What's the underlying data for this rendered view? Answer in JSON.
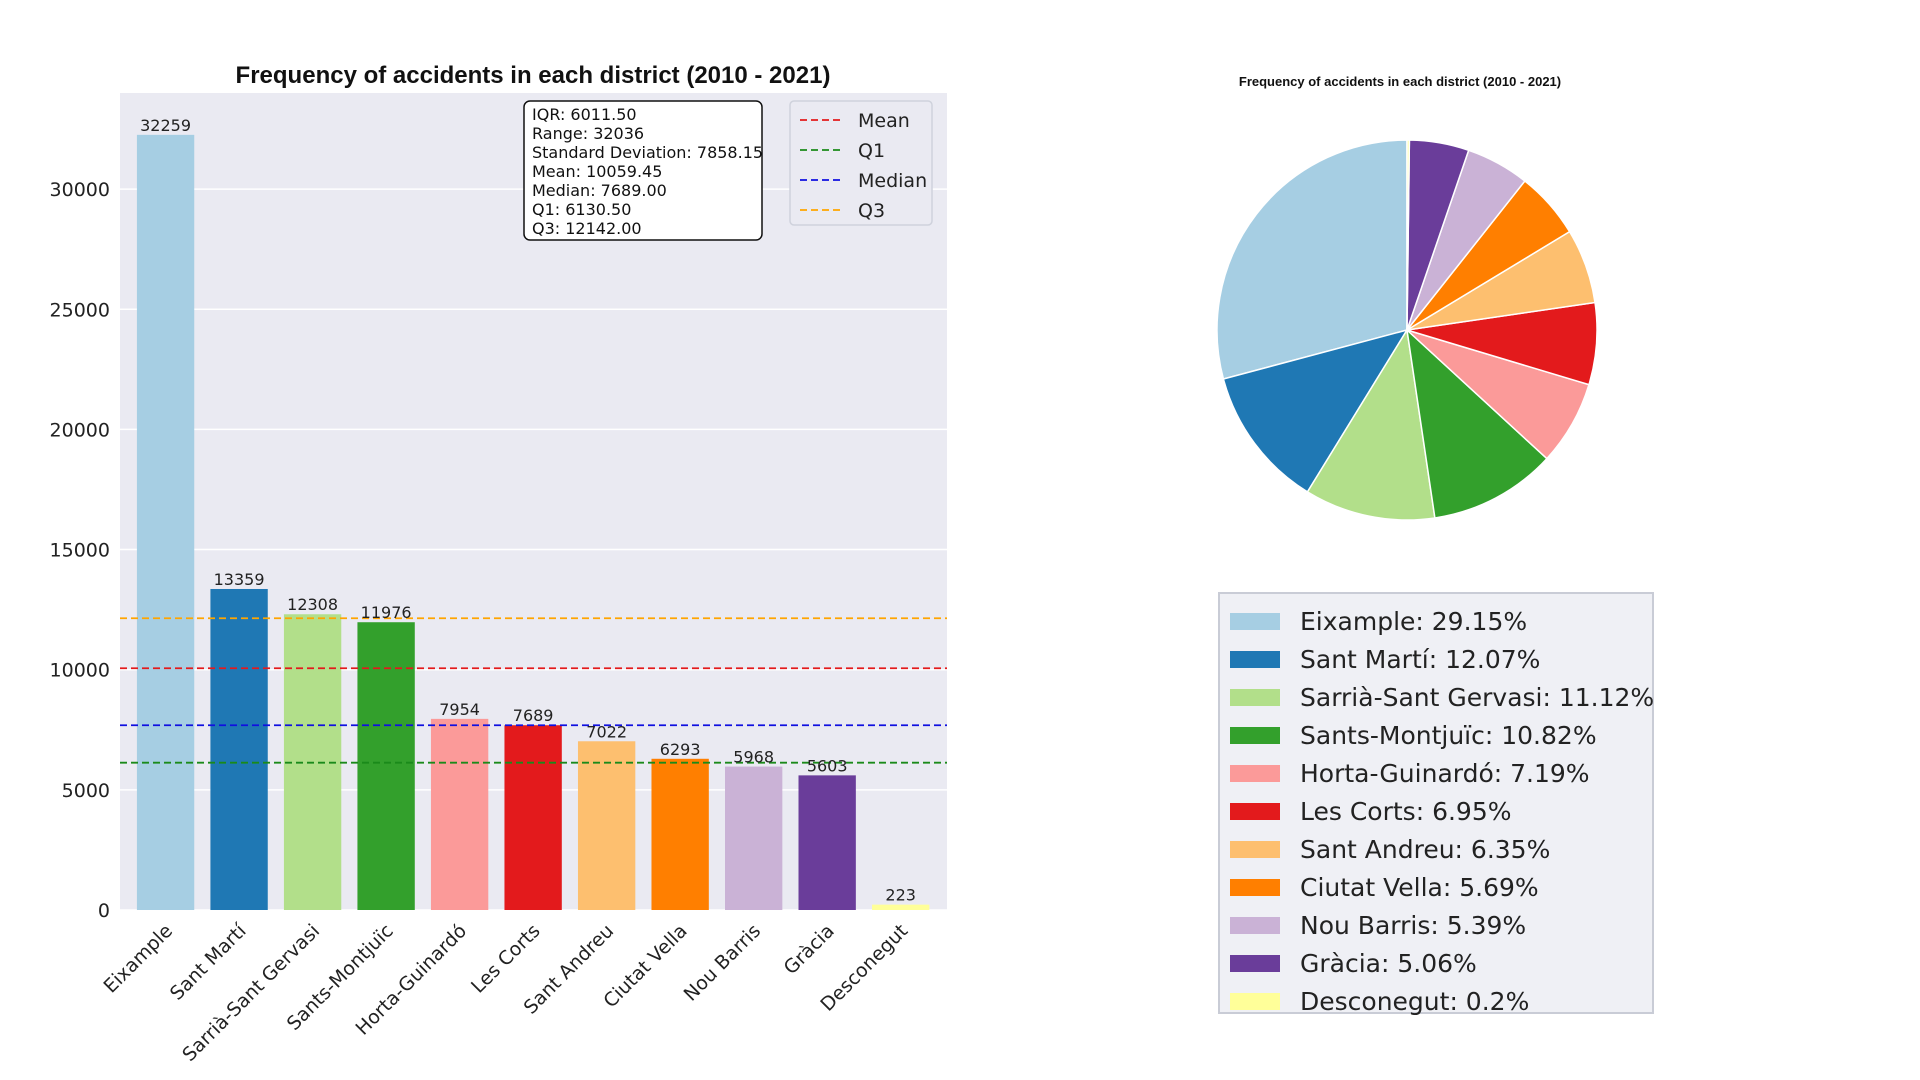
{
  "chart_data": [
    {
      "type": "bar",
      "title": "Frequency of accidents in each district (2010 - 2021)",
      "xlabel": "",
      "ylabel": "",
      "ylim": [
        0,
        34000
      ],
      "yticks": [
        0,
        5000,
        10000,
        15000,
        20000,
        25000,
        30000
      ],
      "grid": true,
      "categories": [
        "Eixample",
        "Sant Martí",
        "Sarrià-Sant Gervasi",
        "Sants-Montjuïc",
        "Horta-Guinardó",
        "Les Corts",
        "Sant Andreu",
        "Ciutat Vella",
        "Nou Barris",
        "Gràcia",
        "Desconegut"
      ],
      "values": [
        32259,
        13359,
        12308,
        11976,
        7954,
        7689,
        7022,
        6293,
        5968,
        5603,
        223
      ],
      "colors": [
        "#a6cee3",
        "#1f78b4",
        "#b2df8a",
        "#33a02c",
        "#fb9a99",
        "#e31a1c",
        "#fdbf6f",
        "#ff7f00",
        "#cab2d6",
        "#6a3d9a",
        "#ffff99"
      ],
      "reference_lines": [
        {
          "name": "Mean",
          "value": 10059.45,
          "color": "#e31a1c"
        },
        {
          "name": "Q1",
          "value": 6130.5,
          "color": "#1a8a1a"
        },
        {
          "name": "Median",
          "value": 7689.0,
          "color": "#1010e0"
        },
        {
          "name": "Q3",
          "value": 12142.0,
          "color": "#ffa500"
        }
      ],
      "legend_position": "top-right",
      "stats_box": [
        "IQR: 6011.50",
        "Range: 32036",
        "Standard Deviation: 7858.15",
        "Mean: 10059.45",
        "Median: 7689.00",
        "Q1: 6130.50",
        "Q3: 12142.00"
      ]
    },
    {
      "type": "pie",
      "title": "Frequency of accidents in each district (2010 - 2021)",
      "labels": [
        "Eixample: 29.15%",
        "Sant Martí: 12.07%",
        "Sarrià-Sant Gervasi: 11.12%",
        "Sants-Montjuïc: 10.82%",
        "Horta-Guinardó: 7.19%",
        "Les Corts: 6.95%",
        "Sant Andreu: 6.35%",
        "Ciutat Vella: 5.69%",
        "Nou Barris: 5.39%",
        "Gràcia: 5.06%",
        "Desconegut: 0.2%"
      ],
      "values": [
        29.15,
        12.07,
        11.12,
        10.82,
        7.19,
        6.95,
        6.35,
        5.69,
        5.39,
        5.06,
        0.2
      ],
      "colors": [
        "#a6cee3",
        "#1f78b4",
        "#b2df8a",
        "#33a02c",
        "#fb9a99",
        "#e31a1c",
        "#fdbf6f",
        "#ff7f00",
        "#cab2d6",
        "#6a3d9a",
        "#ffff99"
      ],
      "start_angle_deg": 90,
      "direction": "counterclockwise",
      "legend_position": "bottom"
    }
  ]
}
